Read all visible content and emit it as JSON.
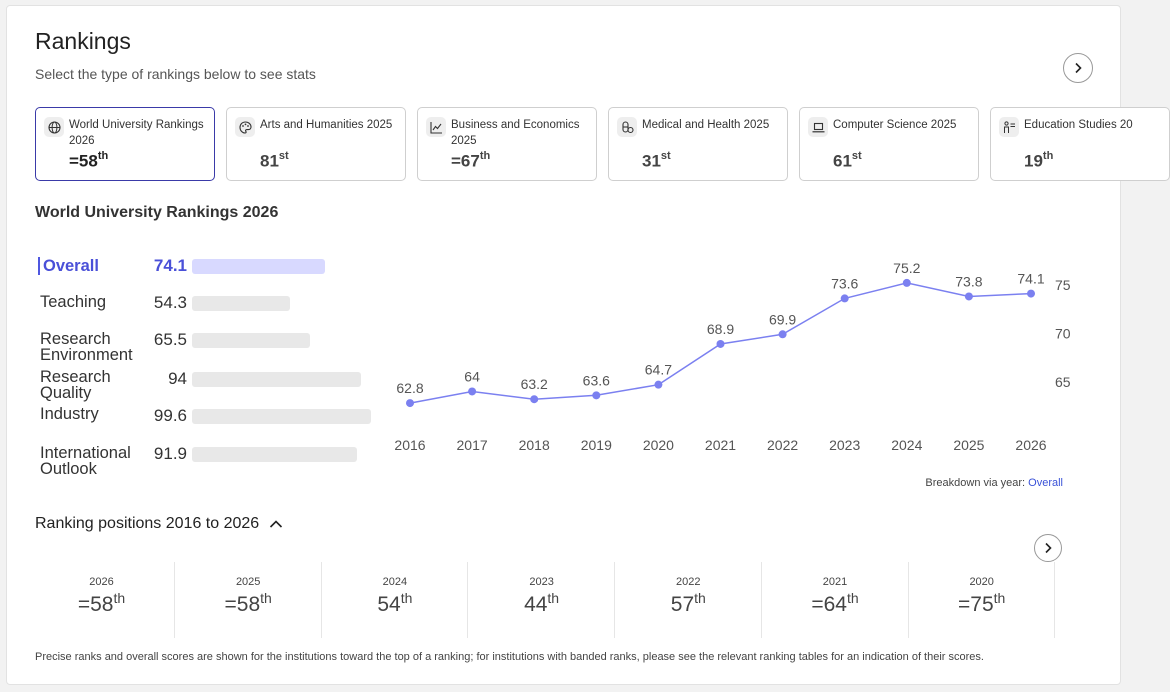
{
  "header": {
    "title": "Rankings",
    "subtitle": "Select the type of rankings below to see stats"
  },
  "ranking_cards": [
    {
      "label": "World University Rankings 2026",
      "value": "=58",
      "suffix": "th",
      "icon": "globe-icon",
      "active": true
    },
    {
      "label": "Arts and Humanities 2025",
      "value": "81",
      "suffix": "st",
      "icon": "palette-icon",
      "active": false
    },
    {
      "label": "Business and Economics 2025",
      "value": "=67",
      "suffix": "th",
      "icon": "chart-line-icon",
      "active": false
    },
    {
      "label": "Medical and Health 2025",
      "value": "31",
      "suffix": "st",
      "icon": "medicine-icon",
      "active": false
    },
    {
      "label": "Computer Science 2025",
      "value": "61",
      "suffix": "st",
      "icon": "laptop-icon",
      "active": false
    },
    {
      "label": "Education Studies 20",
      "value": "19",
      "suffix": "th",
      "icon": "teacher-icon",
      "active": false
    }
  ],
  "section": {
    "title": "World University Rankings 2026"
  },
  "metrics": [
    {
      "label": "Overall",
      "value": "74.1",
      "score": 74.1,
      "active": true
    },
    {
      "label": "Teaching",
      "value": "54.3",
      "score": 54.3,
      "active": false
    },
    {
      "label": "Research Environment",
      "value": "65.5",
      "score": 65.5,
      "active": false
    },
    {
      "label": "Research Quality",
      "value": "94",
      "score": 94,
      "active": false
    },
    {
      "label": "Industry",
      "value": "99.6",
      "score": 99.6,
      "active": false
    },
    {
      "label": "International Outlook",
      "value": "91.9",
      "score": 91.9,
      "active": false
    }
  ],
  "chart_data": {
    "type": "line",
    "title": "",
    "xlabel": "",
    "ylabel": "",
    "x": [
      2016,
      2017,
      2018,
      2019,
      2020,
      2021,
      2022,
      2023,
      2024,
      2025,
      2026
    ],
    "series": [
      {
        "values": [
          62.8,
          64,
          63.2,
          63.6,
          64.7,
          68.9,
          69.9,
          73.6,
          75.2,
          73.8,
          74.1
        ]
      }
    ],
    "data_labels": [
      "62.8",
      "64",
      "63.2",
      "63.6",
      "64.7",
      "68.9",
      "69.9",
      "73.6",
      "75.2",
      "73.8",
      "74.1"
    ],
    "yticks": [
      65,
      70,
      75
    ],
    "y_axis_side": "right",
    "grid": false,
    "line_color": "#7b80f0"
  },
  "breakdown": {
    "label": "Breakdown via year:",
    "link": "Overall"
  },
  "positions_section": {
    "title": "Ranking positions 2016 to 2026"
  },
  "positions": [
    {
      "year": "2026",
      "rank": "=58",
      "suffix": "th"
    },
    {
      "year": "2025",
      "rank": "=58",
      "suffix": "th"
    },
    {
      "year": "2024",
      "rank": "54",
      "suffix": "th"
    },
    {
      "year": "2023",
      "rank": "44",
      "suffix": "th"
    },
    {
      "year": "2022",
      "rank": "57",
      "suffix": "th"
    },
    {
      "year": "2021",
      "rank": "=64",
      "suffix": "th"
    },
    {
      "year": "2020",
      "rank": "=75",
      "suffix": "th"
    }
  ],
  "footnote": "Precise ranks and overall scores are shown for the institutions toward the top of a ranking; for institutions with banded ranks, please see the relevant ranking tables for an indication of their scores.",
  "colors": {
    "accent": "#4a50d8",
    "active_bar": "#d8d9ff",
    "bar": "#e8e8e8"
  }
}
